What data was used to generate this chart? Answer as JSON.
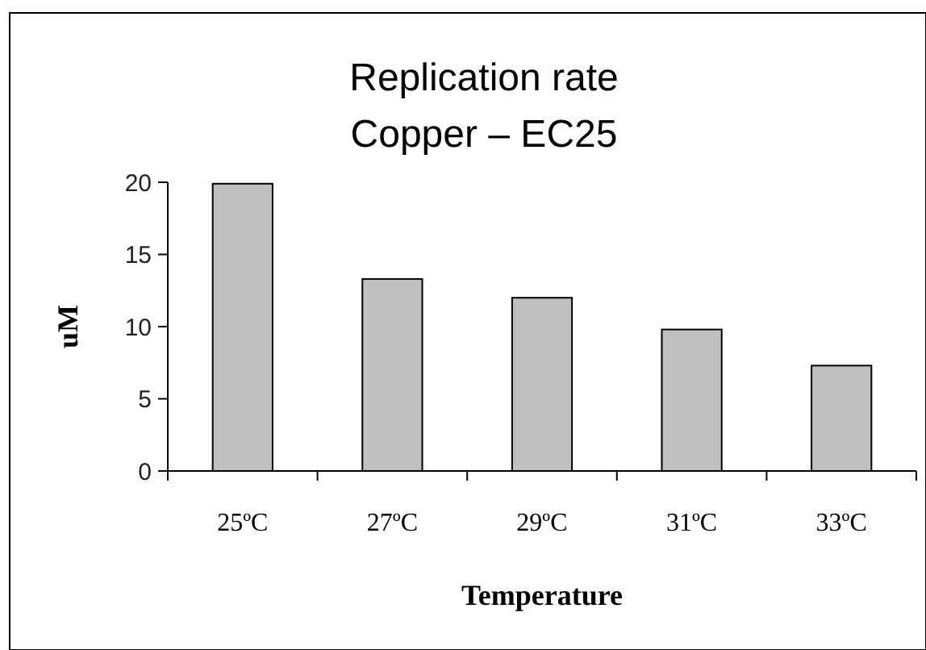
{
  "chart_data": {
    "type": "bar",
    "title": "Replication rate\nCopper – EC25",
    "xlabel": "Temperature",
    "ylabel": "uM",
    "categories": [
      "25ºC",
      "27ºC",
      "29ºC",
      "31ºC",
      "33ºC"
    ],
    "values": [
      19.9,
      13.3,
      12.0,
      9.8,
      7.3
    ],
    "color": "#c0c0c0",
    "ylim": [
      0,
      20
    ],
    "yticks": [
      0,
      5,
      10,
      15,
      20
    ],
    "grid": false
  }
}
